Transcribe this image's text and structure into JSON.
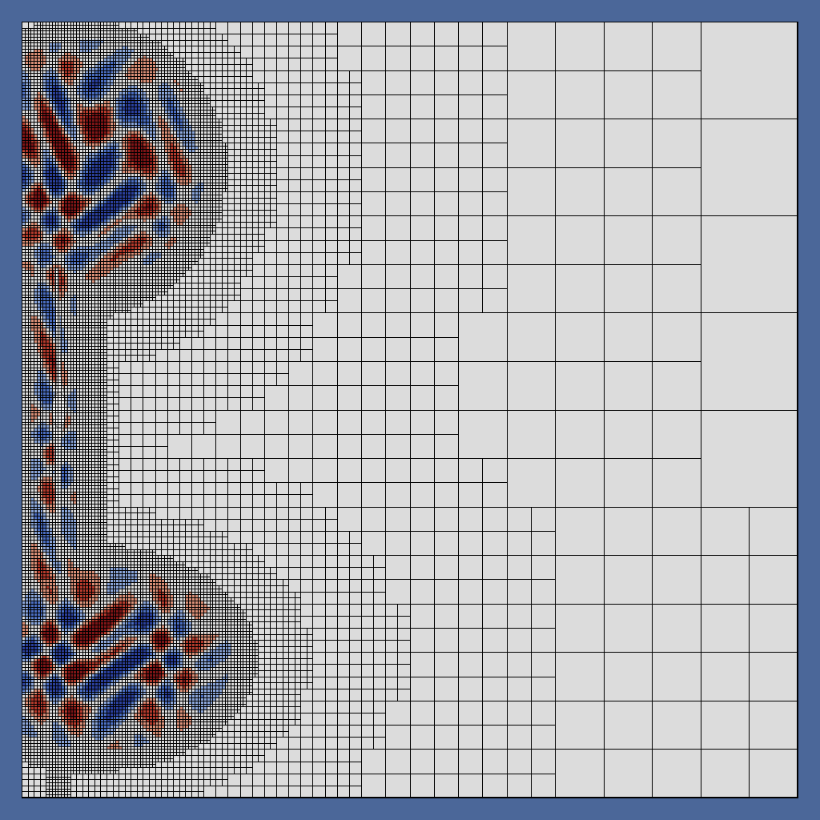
{
  "viewport": {
    "render_type": "adaptive-mesh-refinement",
    "colormap": [
      "#7e1416",
      "#b43a2c",
      "#d98f77",
      "#dcdcdc",
      "#8aa5d8",
      "#4a6dc0",
      "#2a3f9c"
    ],
    "colors": {
      "background": "#4b6799",
      "domain_fill": "#dcdcdc",
      "grid_line": "#000000",
      "interface_fill": "#f4f4f4",
      "interface_edge": "#8a8a8a"
    },
    "mesh_levels": {
      "coarsest": 2,
      "finest": 8
    },
    "interface": "gas-bubble-column",
    "features": [
      "vortex-region-top",
      "vortex-region-bottom",
      "bubble-column-left"
    ]
  }
}
